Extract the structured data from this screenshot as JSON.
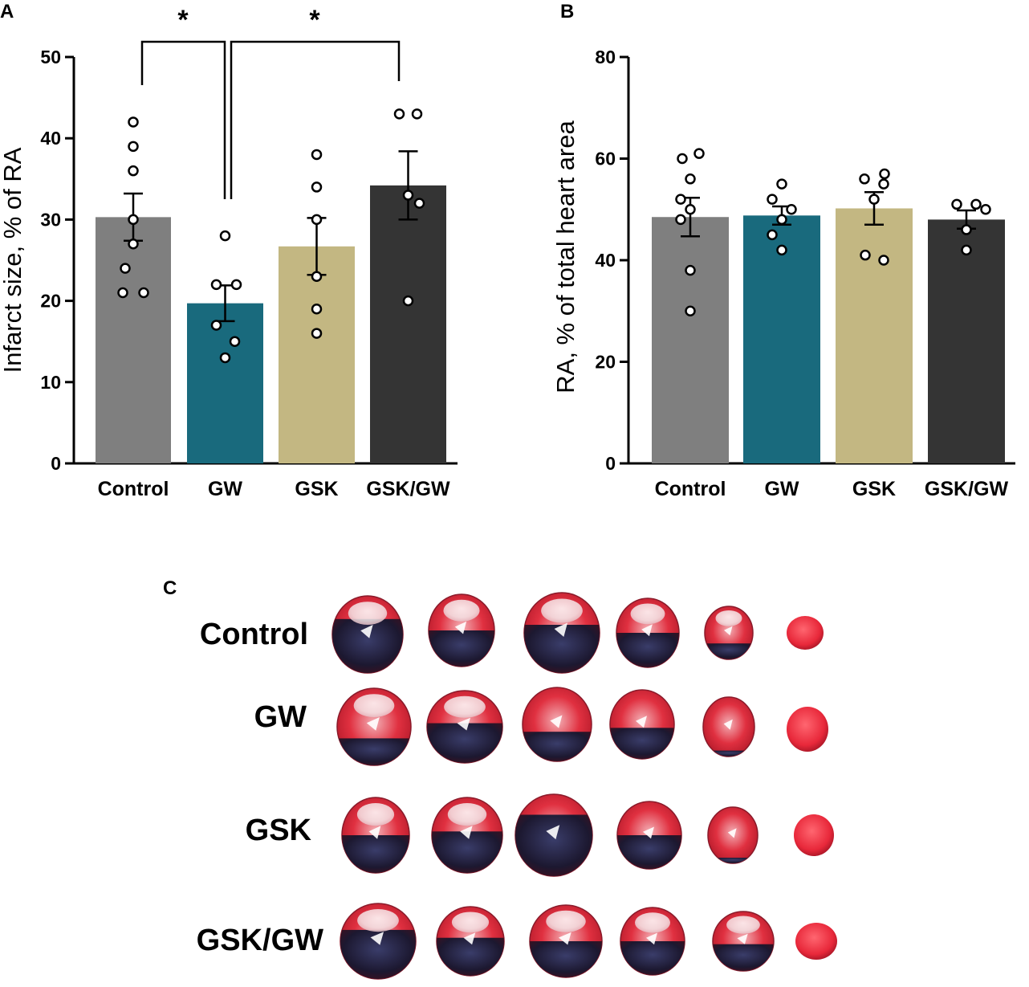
{
  "colors": {
    "Control": "#7f7f7f",
    "GW": "#196a7d",
    "GSK": "#c3b782",
    "GSK/GW": "#343434",
    "axis": "#000000",
    "dot_fill": "#ffffff"
  },
  "chart_data": [
    {
      "panel": "A",
      "type": "bar",
      "categories": [
        "Control",
        "GW",
        "GSK",
        "GSK/GW"
      ],
      "values": [
        30.3,
        19.7,
        26.7,
        34.2
      ],
      "sem": [
        2.9,
        2.2,
        3.5,
        4.2
      ],
      "points": [
        [
          42,
          39,
          36,
          30,
          27,
          24,
          21,
          21
        ],
        [
          28,
          22,
          22,
          17,
          15,
          13
        ],
        [
          38,
          34,
          30,
          23,
          19,
          16
        ],
        [
          43,
          43,
          33,
          32,
          20
        ]
      ],
      "title": "",
      "xlabel": "",
      "ylabel": "Infarct size, % of RA",
      "ylim": [
        0,
        50
      ],
      "yticks": [
        "0",
        "10",
        "20",
        "30",
        "40",
        "50"
      ],
      "significance": [
        {
          "from": "Control",
          "to": "GW",
          "label": "*"
        },
        {
          "from": "GW",
          "to": "GSK/GW",
          "label": "*"
        }
      ]
    },
    {
      "panel": "B",
      "type": "bar",
      "categories": [
        "Control",
        "GW",
        "GSK",
        "GSK/GW"
      ],
      "values": [
        48.5,
        48.8,
        50.2,
        48.0
      ],
      "sem": [
        3.8,
        1.8,
        3.2,
        1.8
      ],
      "points": [
        [
          60,
          61,
          56,
          52,
          50,
          48,
          38,
          30
        ],
        [
          55,
          52,
          50,
          48,
          45,
          42
        ],
        [
          56,
          57,
          55,
          52,
          41,
          40
        ],
        [
          51,
          51,
          50,
          46,
          42
        ]
      ],
      "title": "",
      "xlabel": "",
      "ylabel": "RA, % of total heart area",
      "ylim": [
        0,
        80
      ],
      "yticks": [
        "0",
        "20",
        "40",
        "60",
        "80"
      ]
    }
  ],
  "panel_c": {
    "letter": "C",
    "row_labels": [
      "Control",
      "GW",
      "GSK",
      "GSK/GW"
    ]
  },
  "panel_letters": {
    "a": "A",
    "b": "B"
  }
}
